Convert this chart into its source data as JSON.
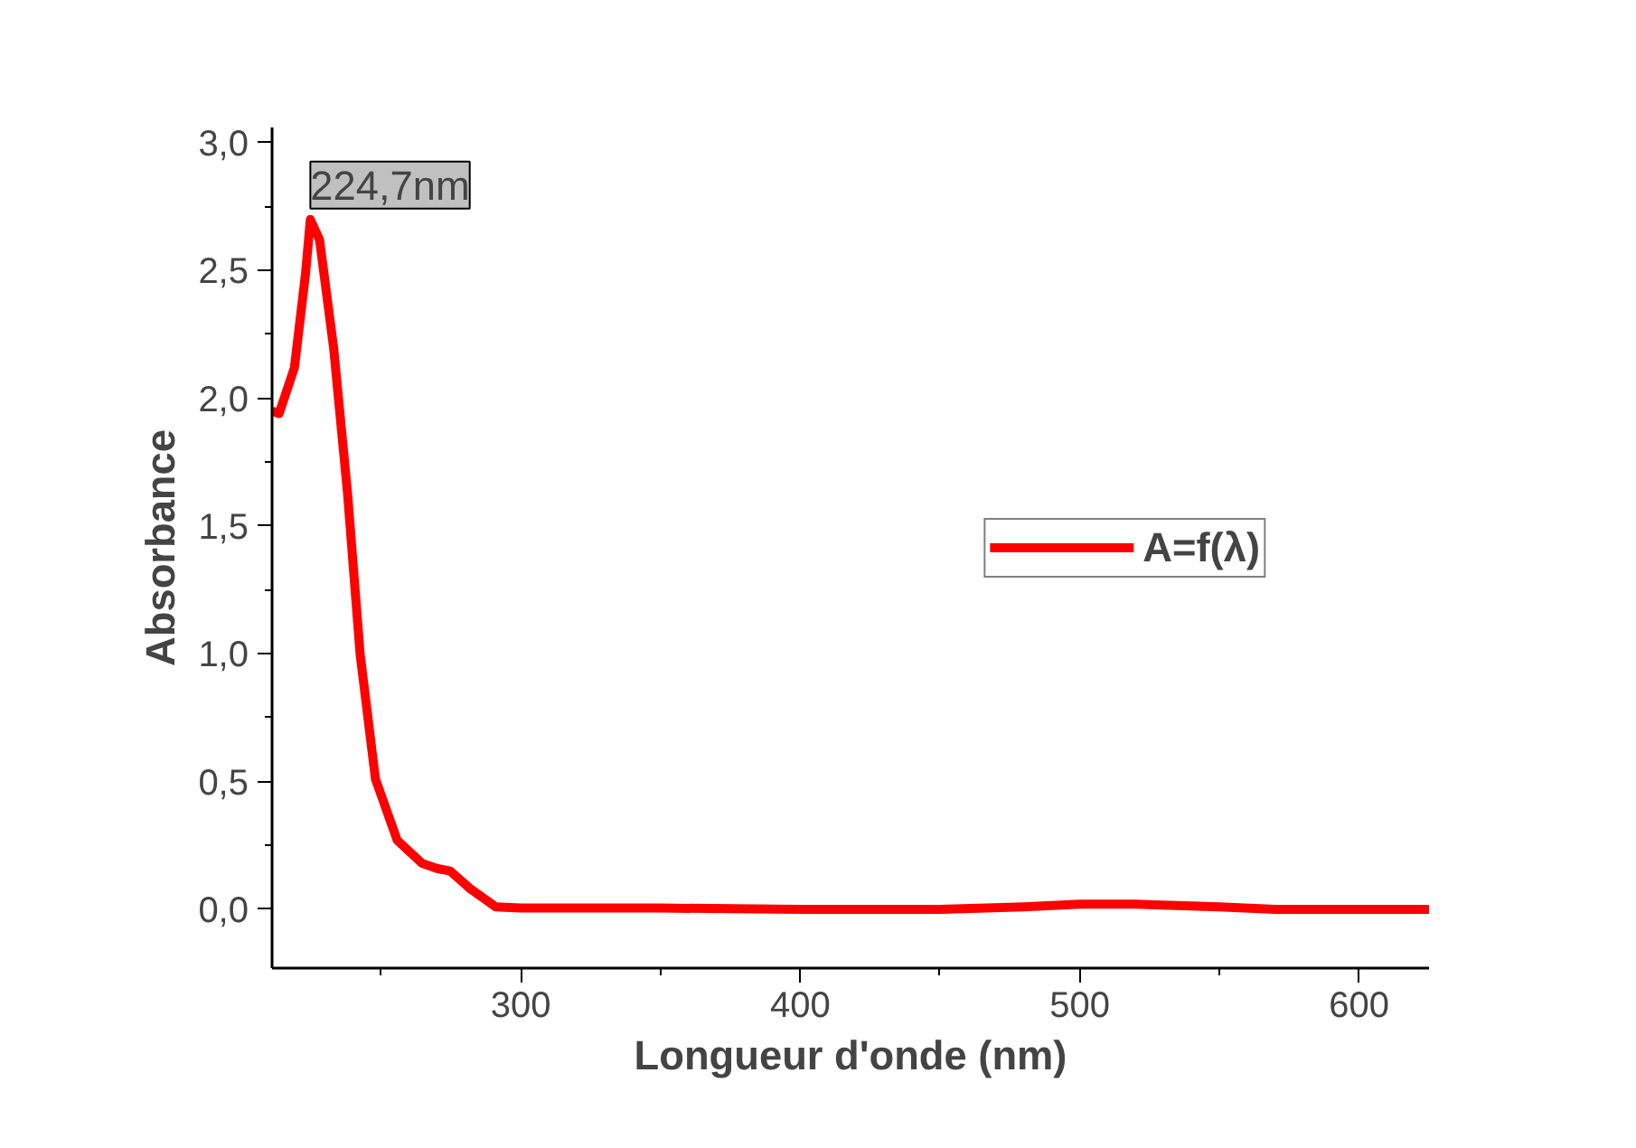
{
  "chart_data": {
    "type": "line",
    "xlabel": "Longueur d'onde (nm)",
    "ylabel": "Absorbance",
    "x": [
      211,
      213.5,
      219,
      223,
      224.7,
      228,
      233,
      238,
      242.5,
      248,
      255.8,
      264.7,
      270,
      274.7,
      282,
      291,
      300,
      350,
      400,
      450,
      480,
      500,
      520,
      550,
      570,
      600,
      625
    ],
    "series": [
      {
        "name": "A=f(λ)",
        "color": "#ff0000",
        "values": [
          1.95,
          1.94,
          2.12,
          2.49,
          2.7,
          2.62,
          2.2,
          1.63,
          1.0,
          0.51,
          0.27,
          0.18,
          0.16,
          0.15,
          0.08,
          0.01,
          0.005,
          0.005,
          0.0,
          0.0,
          0.01,
          0.02,
          0.02,
          0.01,
          0.0,
          0.0,
          0.0
        ]
      }
    ],
    "xlim": [
      211,
      625
    ],
    "ylim": [
      -0.23,
      3.06
    ],
    "xticks": [
      300,
      400,
      500,
      600
    ],
    "yticks": [
      {
        "value": 0,
        "label": "0,0"
      },
      {
        "value": 0.5,
        "label": "0,5"
      },
      {
        "value": 1,
        "label": "1,0"
      },
      {
        "value": 1.5,
        "label": "1,5"
      },
      {
        "value": 2,
        "label": "2,0"
      },
      {
        "value": 2.5,
        "label": "2,5"
      },
      {
        "value": 3,
        "label": "3,0"
      }
    ],
    "annotations": [
      {
        "text": "224,7nm",
        "x": 224.7,
        "y": 2.7
      }
    ],
    "legend": "right",
    "grid": false,
    "line_style": "solid",
    "marker": "none"
  }
}
